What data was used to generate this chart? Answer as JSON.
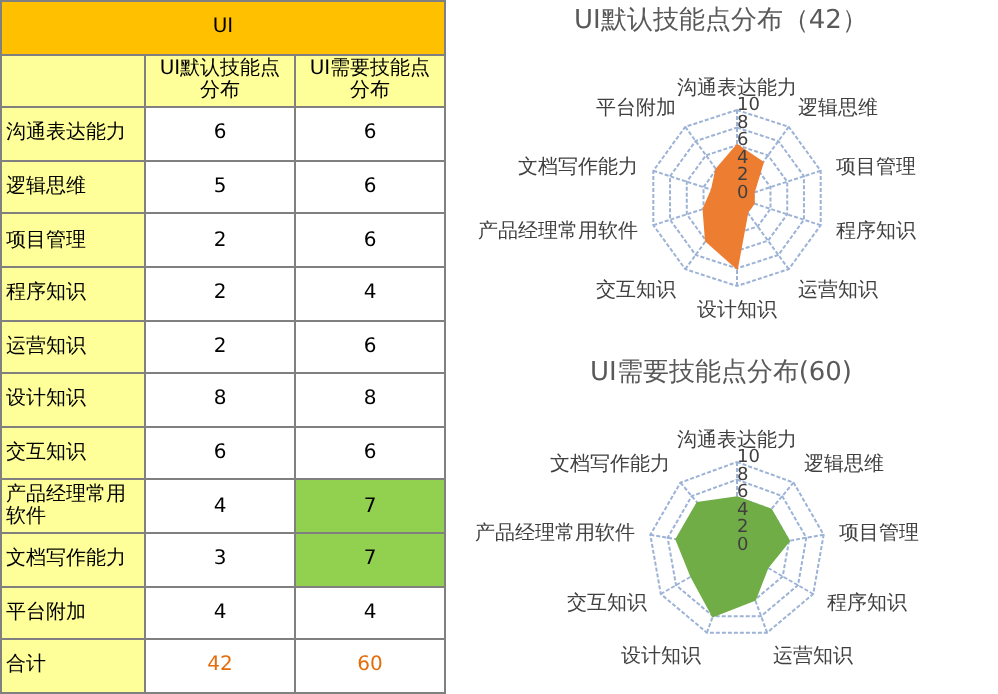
{
  "chart_data": [
    {
      "type": "other",
      "title": "UI",
      "categories": [
        "沟通表达能力",
        "逻辑思维",
        "项目管理",
        "程序知识",
        "运营知识",
        "设计知识",
        "交互知识",
        "产品经理常用软件",
        "文档写作能力",
        "平台附加"
      ],
      "series": [
        {
          "name": "UI默认技能点分布",
          "values": [
            6,
            5,
            2,
            2,
            2,
            8,
            6,
            4,
            3,
            4
          ],
          "colors": [
            "#ffffff",
            "#ffffff",
            "#ffffff",
            "#ffffff",
            "#ffffff",
            "#ffffff",
            "#ffffff",
            "#ffffff",
            "#ffffff",
            "#ffffff"
          ]
        },
        {
          "name": "UI需要技能点分布",
          "values": [
            6,
            6,
            6,
            4,
            6,
            8,
            6,
            7,
            7,
            4
          ],
          "colors": [
            "#ffffff",
            "#ffffff",
            "#ffffff",
            "#ffffff",
            "#ffffff",
            "#ffffff",
            "#ffffff",
            "#92d050",
            "#92d050",
            "#ffffff"
          ]
        }
      ],
      "data_labels": true,
      "totals": [
        "42",
        "60"
      ],
      "annotations": [
        "合计"
      ]
    },
    {
      "type": "radar",
      "title": "UI默认技能点分布（42）",
      "categories": [
        "沟通表达能力",
        "逻辑思维",
        "项目管理",
        "程序知识",
        "运营知识",
        "设计知识",
        "交互知识",
        "产品经理常用软件",
        "文档写作能力",
        "平台附加"
      ],
      "series": [
        {
          "color": "#ed7d31",
          "values": [
            6,
            5,
            2,
            2,
            2,
            8,
            6,
            4,
            3,
            4
          ]
        }
      ],
      "ylim": [
        0,
        10
      ],
      "yticks": [
        0,
        2,
        4,
        6,
        8,
        10
      ],
      "grid": true
    },
    {
      "type": "radar",
      "title": "UI需要技能点分布(60)",
      "categories": [
        "沟通表达能力",
        "逻辑思维",
        "项目管理",
        "程序知识",
        "运营知识",
        "设计知识",
        "交互知识",
        "产品经理常用软件",
        "文档写作能力"
      ],
      "series": [
        {
          "color": "#70ad47",
          "values": [
            6,
            6,
            6,
            4,
            6,
            8,
            6,
            7,
            7
          ]
        }
      ],
      "ylim": [
        0,
        10
      ],
      "yticks": [
        0,
        2,
        4,
        6,
        8,
        10
      ],
      "grid": true
    }
  ]
}
